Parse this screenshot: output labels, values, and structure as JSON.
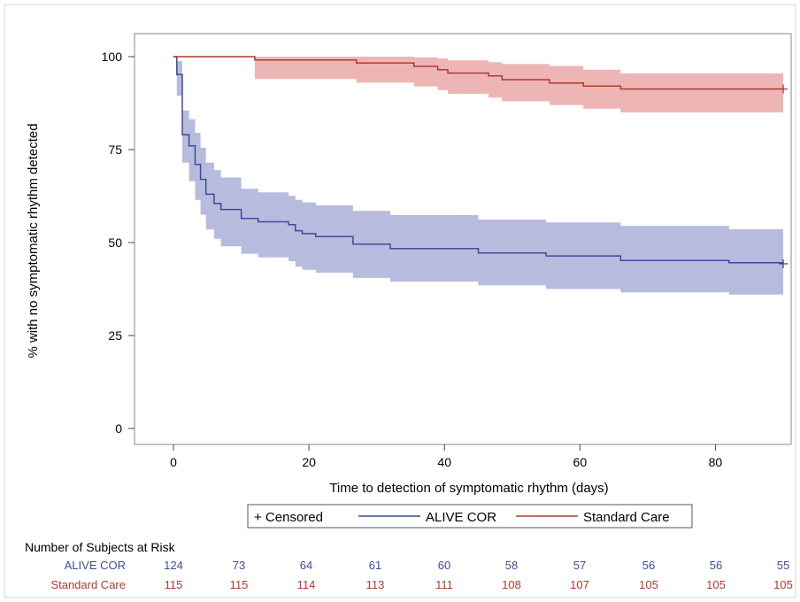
{
  "chart_data": {
    "type": "line",
    "xlabel": "Time to detection of symptomatic rhythm (days)",
    "ylabel": "% with no symptomatic rhythm detected",
    "xlim": [
      0,
      90
    ],
    "ylim": [
      0,
      100
    ],
    "x_ticks": [
      0,
      20,
      40,
      60,
      80
    ],
    "y_ticks": [
      0,
      25,
      50,
      75,
      100
    ],
    "grid": false,
    "legend_position": "bottom",
    "legend": [
      {
        "label": "+ Censored",
        "kind": "marker"
      },
      {
        "label": "ALIVE COR",
        "kind": "line",
        "color": "#3c4c9a"
      },
      {
        "label": "Standard Care",
        "kind": "line",
        "color": "#b03a2e"
      }
    ],
    "series": [
      {
        "name": "ALIVE COR",
        "color": "#3c4c9a",
        "band_color": "#aab0d8",
        "x": [
          0,
          0.5,
          1.3,
          2.3,
          3.2,
          4.0,
          4.8,
          6.0,
          7.0,
          10.0,
          12.5,
          17.0,
          18.0,
          19.0,
          21.0,
          26.5,
          32.0,
          45.0,
          55.0,
          66.0,
          82.0,
          90.0
        ],
        "y": [
          100,
          95.2,
          79.0,
          76.0,
          71.0,
          67.0,
          63.0,
          60.5,
          58.9,
          56.5,
          55.6,
          54.8,
          53.2,
          52.4,
          51.6,
          49.6,
          48.4,
          47.2,
          46.4,
          45.2,
          44.6,
          44.3
        ],
        "lower": [
          100,
          89.5,
          71.5,
          66.5,
          61.5,
          57.5,
          53.5,
          51.0,
          49.0,
          47.0,
          46.0,
          45.0,
          43.5,
          42.7,
          41.9,
          40.5,
          39.5,
          38.5,
          37.5,
          36.6,
          36.0,
          35.5
        ],
        "upper": [
          100,
          98.8,
          85.5,
          83.2,
          79.5,
          75.5,
          71.5,
          69.5,
          67.5,
          64.5,
          63.5,
          62.6,
          61.5,
          60.8,
          60.0,
          58.5,
          57.4,
          56.2,
          55.4,
          54.5,
          53.6,
          53.4
        ]
      },
      {
        "name": "Standard Care",
        "color": "#b03a2e",
        "band_color": "#eba8a8",
        "x": [
          0,
          10.0,
          12.0,
          27.0,
          35.5,
          39.0,
          40.5,
          46.5,
          48.5,
          55.5,
          60.5,
          66.0,
          90.0
        ],
        "y": [
          100,
          100,
          99.1,
          98.3,
          97.4,
          96.5,
          95.6,
          94.8,
          93.8,
          92.9,
          92.1,
          91.3,
          91.3
        ],
        "lower": [
          100,
          100,
          94.0,
          93.0,
          92.0,
          91.0,
          90.0,
          89.0,
          88.0,
          87.0,
          86.0,
          85.0,
          84.5
        ],
        "upper": [
          100,
          100,
          100,
          100,
          99.8,
          99.5,
          99.0,
          98.5,
          98.0,
          97.5,
          96.5,
          95.5,
          95.5
        ]
      }
    ],
    "censored_marks": [
      {
        "series": "ALIVE COR",
        "x": 90.0,
        "y": 44.3
      },
      {
        "series": "Standard Care",
        "x": 90.0,
        "y": 91.3
      }
    ]
  },
  "risk_table": {
    "title": "Number of Subjects at Risk",
    "rows": [
      {
        "label": "ALIVE COR",
        "color": "#3c4c9a",
        "values": [
          "124",
          "73",
          "64",
          "61",
          "60",
          "58",
          "57",
          "56",
          "56",
          "55"
        ]
      },
      {
        "label": "Standard Care",
        "color": "#b03a2e",
        "values": [
          "115",
          "115",
          "114",
          "113",
          "111",
          "108",
          "107",
          "105",
          "105",
          "105"
        ]
      }
    ]
  }
}
